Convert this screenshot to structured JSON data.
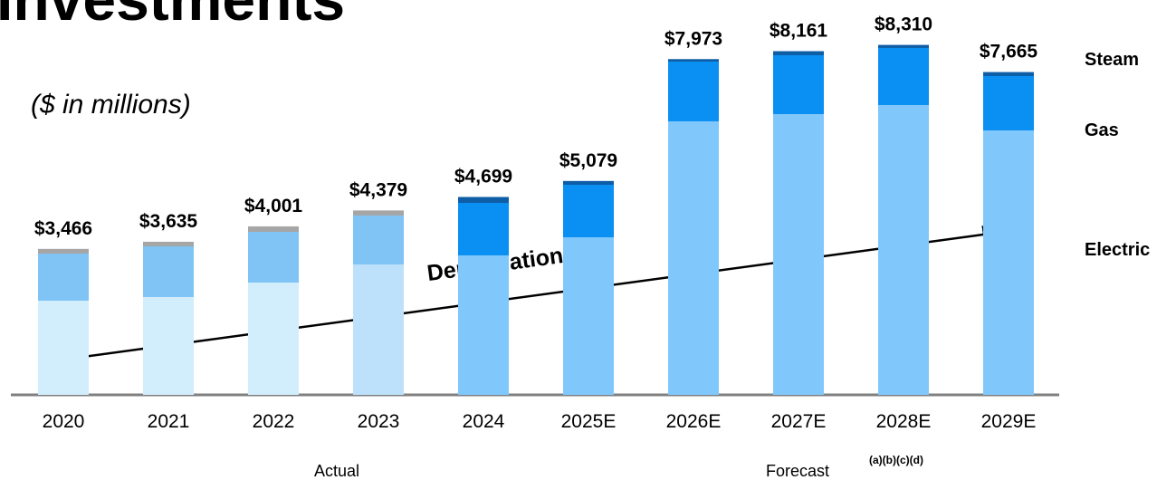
{
  "chart_data": {
    "type": "stacked_bar",
    "title": "Investments",
    "subtitle": "($ in millions)",
    "categories": [
      "2020",
      "2021",
      "2022",
      "2023",
      "2024",
      "2025E",
      "2026E",
      "2027E",
      "2028E",
      "2029E"
    ],
    "series": [
      {
        "name": "Electric",
        "color": "#9fd4fb",
        "colors": [
          "#d2edfc",
          "#d2edfc",
          "#d2edfc",
          "#bde1fa",
          "#80c8fb",
          "#80c8fb",
          "#80c8fb",
          "#80c8fb",
          "#80c8fb",
          "#80c8fb"
        ],
        "values": [
          2237,
          2323,
          2667,
          3097,
          3312,
          3742,
          6495,
          6667,
          6882,
          6280
        ]
      },
      {
        "name": "Gas",
        "color": "#1a7ccc",
        "colors": [
          "#80c4f6",
          "#80c4f6",
          "#80c4f6",
          "#80c4f6",
          "#0a8ff2",
          "#0a8ff2",
          "#0a8ff2",
          "#0a8ff2",
          "#0a8ff2",
          "#0a8ff2"
        ],
        "values": [
          1118,
          1204,
          1204,
          1161,
          1247,
          1247,
          1419,
          1398,
          1355,
          1290
        ]
      },
      {
        "name": "Steam",
        "color": "#1a5c9e",
        "colors": [
          "#a6a6a6",
          "#a6a6a6",
          "#a6a6a6",
          "#a6a6a6",
          "#0d5ea6",
          "#0d5ea6",
          "#0d5ea6",
          "#0d5ea6",
          "#0d5ea6",
          "#0d5ea6"
        ],
        "values": [
          111,
          108,
          130,
          121,
          140,
          90,
          59,
          96,
          73,
          95
        ]
      }
    ],
    "totals": [
      3466,
      3635,
      4001,
      4379,
      4699,
      5079,
      7973,
      8161,
      8310,
      7665
    ],
    "total_labels": [
      "$3,466",
      "$3,635",
      "$4,001",
      "$4,379",
      "$4,699",
      "$5,079",
      "$7,973",
      "$8,161",
      "$8,310",
      "$7,665"
    ],
    "ylim": [
      0,
      9000
    ],
    "annotations": [
      "Depreciation",
      "Actual",
      "Forecast",
      "(a)(b)(c)(d)"
    ]
  }
}
